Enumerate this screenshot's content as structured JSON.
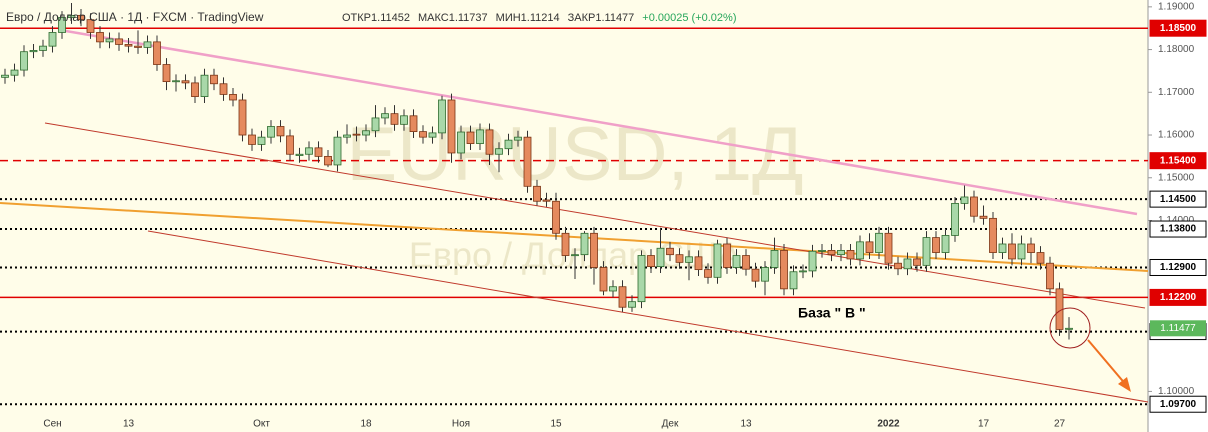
{
  "chart_data": {
    "type": "candlestick",
    "header": "Евро / Доллар США · 1Д · FXCM · TradingView",
    "ohlc_header": [
      "ОТКР1.11452",
      "МАКС1.11737",
      "МИН1.11214",
      "ЗАКР1.11477",
      "+0.00025 (+0.02%)"
    ],
    "watermark": "EURUSD, 1Д",
    "watermark_sub": "Евро / Доллар США",
    "annotation": "База  \" В \"",
    "up_color": "#a9d8a9",
    "down_color": "#e58a5e",
    "ylim": [
      1.0905,
      1.1916
    ],
    "yticks": [
      {
        "value": 1.19,
        "label": "1.19000"
      },
      {
        "value": 1.18,
        "label": "1.18000"
      },
      {
        "value": 1.17,
        "label": "1.17000"
      },
      {
        "value": 1.16,
        "label": "1.16000"
      },
      {
        "value": 1.15,
        "label": "1.15000"
      },
      {
        "value": 1.14,
        "label": "1.14000"
      },
      {
        "value": 1.1,
        "label": "1.10000"
      }
    ],
    "levels": [
      {
        "value": 1.185,
        "label": "1.18500",
        "color": "#e00000",
        "style": "solid"
      },
      {
        "value": 1.154,
        "label": "1.15400",
        "color": "#e00000",
        "style": "dashed"
      },
      {
        "value": 1.145,
        "label": "1.14500",
        "color": "#000000",
        "style": "dotted"
      },
      {
        "value": 1.138,
        "label": "1.13800",
        "color": "#000000",
        "style": "dotted"
      },
      {
        "value": 1.129,
        "label": "1.12900",
        "color": "#000000",
        "style": "dotted"
      },
      {
        "value": 1.122,
        "label": "1.12200",
        "color": "#e00000",
        "style": "solid"
      },
      {
        "value": 1.114,
        "label": "1.11400",
        "color": "#000000",
        "style": "dotted"
      },
      {
        "value": 1.097,
        "label": "1.09700",
        "color": "#000000",
        "style": "dotted"
      }
    ],
    "last_price": {
      "value": 1.11477,
      "label": "1.11477",
      "color": "#5cb85c"
    },
    "categories": [
      null,
      null,
      null,
      null,
      null,
      "Сен",
      null,
      null,
      null,
      null,
      null,
      null,
      null,
      "13",
      null,
      null,
      null,
      null,
      null,
      null,
      null,
      null,
      null,
      null,
      null,
      null,
      null,
      "Окт",
      null,
      null,
      null,
      null,
      null,
      null,
      null,
      null,
      null,
      null,
      "18",
      null,
      null,
      null,
      null,
      null,
      null,
      null,
      null,
      null,
      "Ноя",
      null,
      null,
      null,
      null,
      null,
      null,
      null,
      null,
      null,
      "15",
      null,
      null,
      null,
      null,
      null,
      null,
      null,
      null,
      null,
      null,
      null,
      "Дек",
      null,
      null,
      null,
      null,
      null,
      null,
      null,
      "13",
      null,
      null,
      null,
      null,
      null,
      null,
      null,
      null,
      null,
      null,
      null,
      null,
      null,
      null,
      "2022",
      null,
      null,
      null,
      null,
      null,
      null,
      null,
      null,
      null,
      "17",
      null,
      null,
      null,
      null,
      null,
      null,
      null,
      "27",
      null
    ],
    "open": [
      1.1735,
      1.174,
      1.1752,
      1.1795,
      1.1798,
      1.1808,
      1.184,
      1.1875,
      1.188,
      1.187,
      1.184,
      1.1818,
      1.1825,
      1.1812,
      1.1808,
      1.1805,
      1.1818,
      1.1765,
      1.1725,
      1.1727,
      1.1722,
      1.169,
      1.174,
      1.172,
      1.1695,
      1.1682,
      1.16,
      1.1578,
      1.1595,
      1.162,
      1.1598,
      1.1552,
      1.1555,
      1.157,
      1.155,
      1.153,
      1.1595,
      1.1602,
      1.16,
      1.161,
      1.164,
      1.165,
      1.1625,
      1.1645,
      1.1608,
      1.1595,
      1.1605,
      1.1682,
      1.1558,
      1.1607,
      1.158,
      1.1612,
      1.1555,
      1.1568,
      1.1588,
      1.1595,
      1.148,
      1.1448,
      1.1445,
      1.137,
      1.1318,
      1.132,
      1.137,
      1.129,
      1.1235,
      1.1245,
      1.1197,
      1.121,
      1.1318,
      1.1292,
      1.1335,
      1.132,
      1.1302,
      1.1315,
      1.1285,
      1.1267,
      1.1345,
      1.129,
      1.1318,
      1.1286,
      1.1258,
      1.129,
      1.133,
      1.124,
      1.128,
      1.1282,
      1.1328,
      1.133,
      1.132,
      1.133,
      1.131,
      1.135,
      1.1325,
      1.137,
      1.13,
      1.1287,
      1.131,
      1.1295,
      1.136,
      1.1325,
      1.1365,
      1.144,
      1.1455,
      1.141,
      1.1405,
      1.1325,
      1.1345,
      1.131,
      1.1345,
      1.1325,
      1.13,
      1.124,
      1.11452
    ],
    "high": [
      1.1755,
      1.1767,
      1.181,
      1.1813,
      1.1823,
      1.1855,
      1.189,
      1.1909,
      1.1895,
      1.1885,
      1.1855,
      1.184,
      1.184,
      1.1827,
      1.1845,
      1.1833,
      1.1833,
      1.178,
      1.1742,
      1.1742,
      1.1737,
      1.1755,
      1.1755,
      1.1735,
      1.171,
      1.1697,
      1.1615,
      1.161,
      1.1635,
      1.1635,
      1.1613,
      1.157,
      1.1585,
      1.1585,
      1.1565,
      1.161,
      1.1625,
      1.162,
      1.1625,
      1.167,
      1.1665,
      1.167,
      1.166,
      1.166,
      1.1623,
      1.162,
      1.1692,
      1.1697,
      1.1622,
      1.1622,
      1.1627,
      1.1627,
      1.1583,
      1.1603,
      1.161,
      1.161,
      1.1495,
      1.1465,
      1.1465,
      1.1385,
      1.1335,
      1.1375,
      1.1385,
      1.1305,
      1.126,
      1.126,
      1.1225,
      1.133,
      1.1333,
      1.1383,
      1.135,
      1.1335,
      1.133,
      1.133,
      1.13,
      1.1355,
      1.136,
      1.1333,
      1.1333,
      1.1301,
      1.1305,
      1.136,
      1.1345,
      1.1295,
      1.1297,
      1.1343,
      1.1345,
      1.1345,
      1.1345,
      1.1345,
      1.1365,
      1.137,
      1.1385,
      1.1385,
      1.1315,
      1.1325,
      1.1325,
      1.1375,
      1.1375,
      1.138,
      1.1455,
      1.1482,
      1.147,
      1.1435,
      1.142,
      1.136,
      1.137,
      1.1365,
      1.136,
      1.134,
      1.1315,
      1.1255,
      1.11737
    ],
    "low": [
      1.172,
      1.1725,
      1.1737,
      1.178,
      1.1783,
      1.1793,
      1.1825,
      1.186,
      1.1855,
      1.1825,
      1.1803,
      1.1803,
      1.1797,
      1.1793,
      1.179,
      1.179,
      1.175,
      1.1705,
      1.1702,
      1.1707,
      1.1675,
      1.1675,
      1.1705,
      1.168,
      1.1667,
      1.1585,
      1.1563,
      1.1563,
      1.158,
      1.1583,
      1.154,
      1.1535,
      1.154,
      1.1535,
      1.1525,
      1.1515,
      1.158,
      1.1585,
      1.1585,
      1.1595,
      1.1625,
      1.161,
      1.161,
      1.1593,
      1.158,
      1.158,
      1.159,
      1.1535,
      1.1543,
      1.1565,
      1.1565,
      1.153,
      1.1513,
      1.1553,
      1.1573,
      1.1465,
      1.1435,
      1.1432,
      1.1355,
      1.1303,
      1.1263,
      1.1305,
      1.125,
      1.1225,
      1.122,
      1.1186,
      1.1186,
      1.1195,
      1.1277,
      1.1277,
      1.1305,
      1.1287,
      1.126,
      1.127,
      1.1252,
      1.1252,
      1.1275,
      1.1275,
      1.1271,
      1.1243,
      1.1225,
      1.1275,
      1.1225,
      1.1225,
      1.1265,
      1.1267,
      1.1313,
      1.1305,
      1.1305,
      1.1295,
      1.1295,
      1.131,
      1.131,
      1.1285,
      1.1272,
      1.1272,
      1.128,
      1.128,
      1.131,
      1.131,
      1.135,
      1.1425,
      1.1395,
      1.139,
      1.131,
      1.131,
      1.1295,
      1.1295,
      1.13,
      1.1285,
      1.1225,
      1.113,
      1.11214
    ],
    "close": [
      1.174,
      1.1752,
      1.1795,
      1.1798,
      1.1808,
      1.184,
      1.1875,
      1.188,
      1.187,
      1.184,
      1.1818,
      1.1825,
      1.1812,
      1.1808,
      1.1805,
      1.1818,
      1.1765,
      1.1725,
      1.1727,
      1.1722,
      1.169,
      1.174,
      1.172,
      1.1695,
      1.1682,
      1.16,
      1.1578,
      1.1595,
      1.162,
      1.1598,
      1.1555,
      1.1555,
      1.157,
      1.155,
      1.153,
      1.1595,
      1.16,
      1.16,
      1.161,
      1.164,
      1.165,
      1.1625,
      1.1645,
      1.1608,
      1.1595,
      1.1605,
      1.1682,
      1.1558,
      1.1607,
      1.158,
      1.1612,
      1.1555,
      1.1568,
      1.1588,
      1.1595,
      1.148,
      1.1445,
      1.1445,
      1.137,
      1.1318,
      1.132,
      1.137,
      1.129,
      1.1235,
      1.1245,
      1.1197,
      1.121,
      1.1318,
      1.1292,
      1.1335,
      1.132,
      1.1302,
      1.1315,
      1.1285,
      1.1267,
      1.1345,
      1.129,
      1.1318,
      1.1286,
      1.1258,
      1.129,
      1.133,
      1.124,
      1.128,
      1.1282,
      1.1328,
      1.133,
      1.132,
      1.133,
      1.131,
      1.135,
      1.1325,
      1.137,
      1.13,
      1.1287,
      1.131,
      1.1295,
      1.136,
      1.1325,
      1.1365,
      1.144,
      1.1455,
      1.141,
      1.1405,
      1.1325,
      1.1345,
      1.131,
      1.1345,
      1.1325,
      1.13,
      1.124,
      1.1145,
      1.11477
    ]
  }
}
